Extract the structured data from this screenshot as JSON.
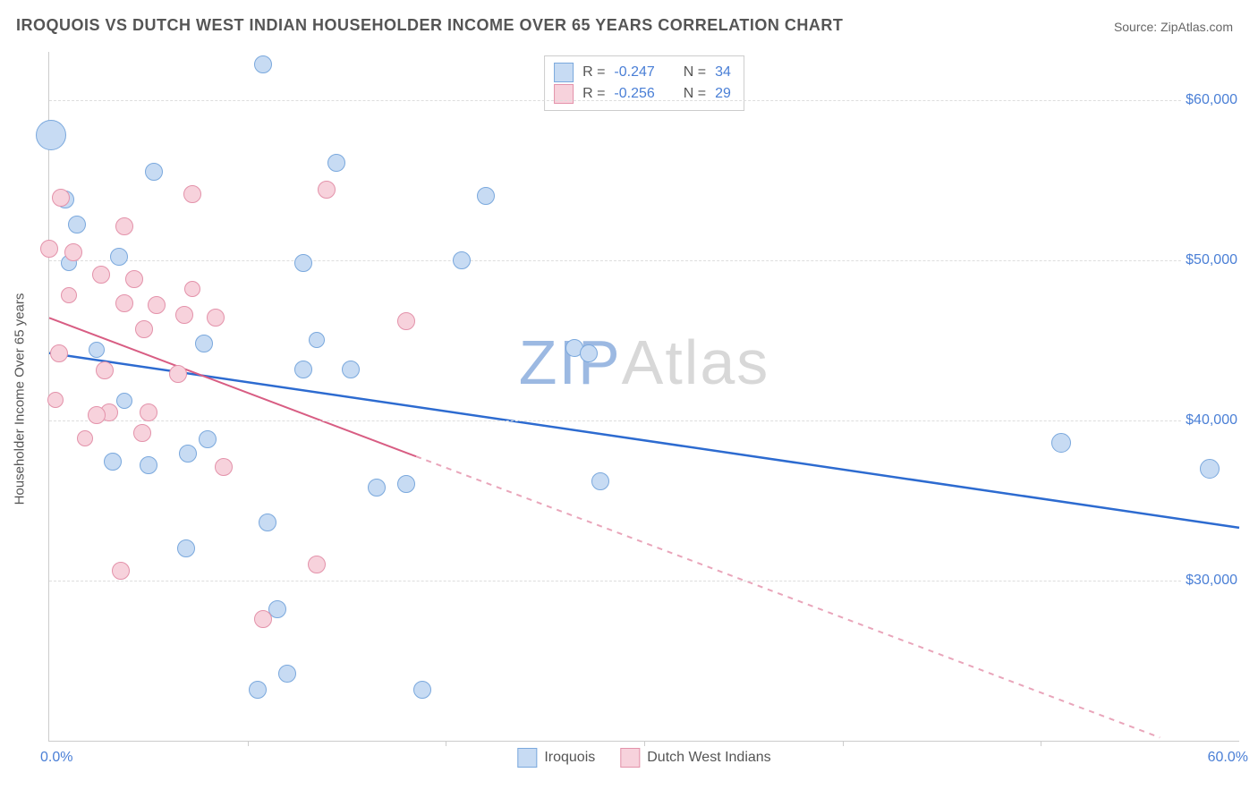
{
  "title": "IROQUOIS VS DUTCH WEST INDIAN HOUSEHOLDER INCOME OVER 65 YEARS CORRELATION CHART",
  "source_label": "Source: ZipAtlas.com",
  "watermark": {
    "text_prefix": "ZIP",
    "text_suffix": "Atlas",
    "color_prefix": "#9cb9e2",
    "color_suffix": "#d8d8d8",
    "fontsize": 70
  },
  "ylabel": "Householder Income Over 65 years",
  "chart": {
    "type": "scatter",
    "background_color": "#ffffff",
    "grid_color": "#dddddd",
    "axis_color": "#cccccc",
    "text_color": "#555555",
    "value_color": "#4a7fd6",
    "xlim": [
      0,
      60
    ],
    "ylim": [
      20000,
      63000
    ],
    "x_minor_tick_step": 10,
    "y_ticks": [
      30000,
      40000,
      50000,
      60000
    ],
    "y_tick_labels": [
      "$30,000",
      "$40,000",
      "$50,000",
      "$60,000"
    ],
    "x_tick_labels": {
      "start": "0.0%",
      "end": "60.0%"
    },
    "series": [
      {
        "name": "Iroquois",
        "fill": "#c7dbf3",
        "stroke": "#7aa8dd",
        "R": "-0.247",
        "N": "34",
        "trend": {
          "x1": 0,
          "y1": 44200,
          "x2": 60,
          "y2": 33300,
          "solid_until_x": 60,
          "stroke": "#2d6bd0",
          "width": 2.5
        },
        "points": [
          {
            "x": 0.1,
            "y": 57800,
            "r": 16
          },
          {
            "x": 0.8,
            "y": 53800,
            "r": 9
          },
          {
            "x": 1.4,
            "y": 52200,
            "r": 9
          },
          {
            "x": 3.5,
            "y": 50200,
            "r": 9
          },
          {
            "x": 5.3,
            "y": 55500,
            "r": 9
          },
          {
            "x": 10.8,
            "y": 62200,
            "r": 9
          },
          {
            "x": 14.5,
            "y": 56100,
            "r": 9
          },
          {
            "x": 22.0,
            "y": 54000,
            "r": 9
          },
          {
            "x": 12.8,
            "y": 49800,
            "r": 9
          },
          {
            "x": 20.8,
            "y": 50000,
            "r": 9
          },
          {
            "x": 7.8,
            "y": 44800,
            "r": 9
          },
          {
            "x": 12.8,
            "y": 43200,
            "r": 9
          },
          {
            "x": 15.2,
            "y": 43200,
            "r": 9
          },
          {
            "x": 8.0,
            "y": 38800,
            "r": 9
          },
          {
            "x": 3.2,
            "y": 37400,
            "r": 9
          },
          {
            "x": 5.0,
            "y": 37200,
            "r": 9
          },
          {
            "x": 7.0,
            "y": 37900,
            "r": 9
          },
          {
            "x": 6.9,
            "y": 32000,
            "r": 9
          },
          {
            "x": 11.0,
            "y": 33600,
            "r": 9
          },
          {
            "x": 11.5,
            "y": 28200,
            "r": 9
          },
          {
            "x": 12.0,
            "y": 24200,
            "r": 9
          },
          {
            "x": 10.5,
            "y": 23200,
            "r": 9
          },
          {
            "x": 16.5,
            "y": 35800,
            "r": 9
          },
          {
            "x": 18.0,
            "y": 36000,
            "r": 9
          },
          {
            "x": 18.8,
            "y": 23200,
            "r": 9
          },
          {
            "x": 26.5,
            "y": 44500,
            "r": 9
          },
          {
            "x": 27.2,
            "y": 44200,
            "r": 9
          },
          {
            "x": 27.8,
            "y": 36200,
            "r": 9
          },
          {
            "x": 51.0,
            "y": 38600,
            "r": 10
          },
          {
            "x": 58.5,
            "y": 37000,
            "r": 10
          },
          {
            "x": 2.4,
            "y": 44400,
            "r": 8
          },
          {
            "x": 3.8,
            "y": 41200,
            "r": 8
          },
          {
            "x": 1.0,
            "y": 49800,
            "r": 8
          },
          {
            "x": 13.5,
            "y": 45000,
            "r": 8
          }
        ]
      },
      {
        "name": "Dutch West Indians",
        "fill": "#f7d2dc",
        "stroke": "#e392aa",
        "R": "-0.256",
        "N": "29",
        "trend": {
          "x1": 0,
          "y1": 46400,
          "x2": 56,
          "y2": 20200,
          "solid_until_x": 18.5,
          "stroke": "#d85d83",
          "width": 2.0
        },
        "points": [
          {
            "x": 0.6,
            "y": 53900,
            "r": 9
          },
          {
            "x": 0.0,
            "y": 50700,
            "r": 9
          },
          {
            "x": 1.2,
            "y": 50500,
            "r": 9
          },
          {
            "x": 3.8,
            "y": 52100,
            "r": 9
          },
          {
            "x": 4.3,
            "y": 48800,
            "r": 9
          },
          {
            "x": 2.6,
            "y": 49100,
            "r": 9
          },
          {
            "x": 7.2,
            "y": 54100,
            "r": 9
          },
          {
            "x": 14.0,
            "y": 54400,
            "r": 9
          },
          {
            "x": 3.8,
            "y": 47300,
            "r": 9
          },
          {
            "x": 5.4,
            "y": 47200,
            "r": 9
          },
          {
            "x": 4.8,
            "y": 45700,
            "r": 9
          },
          {
            "x": 6.8,
            "y": 46600,
            "r": 9
          },
          {
            "x": 8.4,
            "y": 46400,
            "r": 9
          },
          {
            "x": 18.0,
            "y": 46200,
            "r": 9
          },
          {
            "x": 0.5,
            "y": 44200,
            "r": 9
          },
          {
            "x": 2.8,
            "y": 43100,
            "r": 9
          },
          {
            "x": 6.5,
            "y": 42900,
            "r": 9
          },
          {
            "x": 0.3,
            "y": 41300,
            "r": 8
          },
          {
            "x": 3.0,
            "y": 40500,
            "r": 9
          },
          {
            "x": 5.0,
            "y": 40500,
            "r": 9
          },
          {
            "x": 2.4,
            "y": 40300,
            "r": 9
          },
          {
            "x": 4.7,
            "y": 39200,
            "r": 9
          },
          {
            "x": 8.8,
            "y": 37100,
            "r": 9
          },
          {
            "x": 3.6,
            "y": 30600,
            "r": 9
          },
          {
            "x": 10.8,
            "y": 27600,
            "r": 9
          },
          {
            "x": 13.5,
            "y": 31000,
            "r": 9
          },
          {
            "x": 1.8,
            "y": 38900,
            "r": 8
          },
          {
            "x": 7.2,
            "y": 48200,
            "r": 8
          },
          {
            "x": 1.0,
            "y": 47800,
            "r": 8
          }
        ]
      }
    ]
  }
}
